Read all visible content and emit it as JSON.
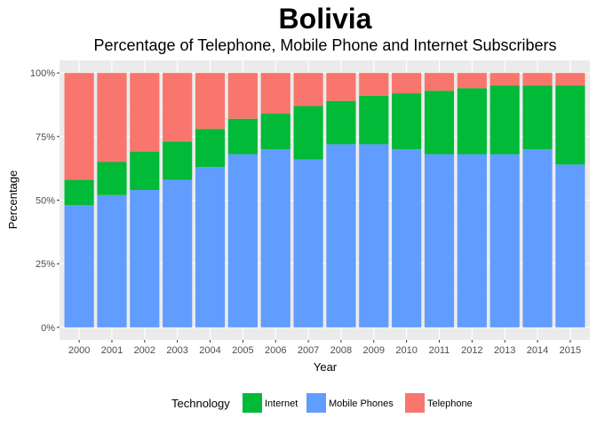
{
  "colors": {
    "panel_background": "#ebebeb",
    "gridline_major": "#ffffff",
    "gridline_minor": "#f5f5f5",
    "Internet": "#00ba38",
    "Mobile Phones": "#619cff",
    "Telephone": "#f8766d"
  },
  "chart_data": {
    "type": "bar",
    "stacked": true,
    "normalized_to_percent": true,
    "title": "Bolivia",
    "subtitle": "Percentage of Telephone, Mobile Phone and Internet Subscribers",
    "xlabel": "Year",
    "ylabel": "Percentage",
    "ylim": [
      0,
      100
    ],
    "y_ticks": [
      "0%",
      "25%",
      "50%",
      "75%",
      "100%"
    ],
    "y_tick_values": [
      0,
      25,
      50,
      75,
      100
    ],
    "grid": true,
    "legend_title": "Technology",
    "legend_position": "bottom",
    "legend_order": [
      "Internet",
      "Mobile Phones",
      "Telephone"
    ],
    "stack_order_bottom_to_top": [
      "Mobile Phones",
      "Internet",
      "Telephone"
    ],
    "categories": [
      "2000",
      "2001",
      "2002",
      "2003",
      "2004",
      "2005",
      "2006",
      "2007",
      "2008",
      "2009",
      "2010",
      "2011",
      "2012",
      "2013",
      "2014",
      "2015"
    ],
    "series": [
      {
        "name": "Mobile Phones",
        "values": [
          48,
          52,
          54,
          58,
          63,
          68,
          70,
          66,
          72,
          72,
          70,
          68,
          68,
          68,
          70,
          64
        ]
      },
      {
        "name": "Internet",
        "values": [
          10,
          13,
          15,
          15,
          15,
          14,
          14,
          21,
          17,
          19,
          22,
          25,
          26,
          27,
          25,
          31
        ]
      },
      {
        "name": "Telephone",
        "values": [
          42,
          35,
          31,
          27,
          22,
          18,
          16,
          13,
          11,
          9,
          8,
          7,
          6,
          5,
          5,
          5
        ]
      }
    ]
  }
}
